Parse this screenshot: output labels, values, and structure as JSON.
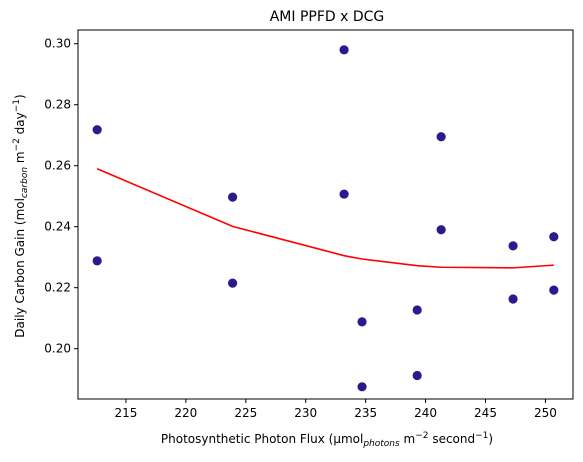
{
  "chart_data": {
    "type": "scatter",
    "title": "AMI PPFD x DCG",
    "xlabel": {
      "prefix": "Photosynthetic Photon Flux (μmol",
      "sub": "photons",
      "mid1": " m",
      "sup1": "−2",
      "mid2": " second",
      "sup2": "−1",
      "suffix": ")"
    },
    "ylabel": {
      "prefix": "Daily Carbon Gain (mol",
      "sub": "carbon",
      "mid1": " m",
      "sup1": "−2",
      "mid2": " day",
      "sup2": "−1",
      "suffix": ")"
    },
    "xlim": [
      211.0,
      252.3
    ],
    "ylim": [
      0.1835,
      0.3045
    ],
    "xticks": [
      215,
      220,
      225,
      230,
      235,
      240,
      245,
      250
    ],
    "yticks": [
      0.2,
      0.22,
      0.24,
      0.26,
      0.28,
      0.3
    ],
    "grid": false,
    "scatter_color": "#2a1a8c",
    "line_color": "#ff0000",
    "points": [
      {
        "x": 212.6,
        "y": 0.2718
      },
      {
        "x": 212.6,
        "y": 0.2288
      },
      {
        "x": 223.9,
        "y": 0.2497
      },
      {
        "x": 223.9,
        "y": 0.2215
      },
      {
        "x": 233.2,
        "y": 0.298
      },
      {
        "x": 233.2,
        "y": 0.2507
      },
      {
        "x": 234.7,
        "y": 0.2088
      },
      {
        "x": 234.7,
        "y": 0.1875
      },
      {
        "x": 239.3,
        "y": 0.2127
      },
      {
        "x": 239.3,
        "y": 0.1912
      },
      {
        "x": 241.3,
        "y": 0.2695
      },
      {
        "x": 241.3,
        "y": 0.239
      },
      {
        "x": 247.3,
        "y": 0.2337
      },
      {
        "x": 247.3,
        "y": 0.2163
      },
      {
        "x": 250.7,
        "y": 0.2367
      },
      {
        "x": 250.7,
        "y": 0.2192
      }
    ],
    "trend_line": [
      {
        "x": 212.6,
        "y": 0.259
      },
      {
        "x": 223.9,
        "y": 0.2401
      },
      {
        "x": 233.2,
        "y": 0.2305
      },
      {
        "x": 234.7,
        "y": 0.2294
      },
      {
        "x": 239.3,
        "y": 0.2272
      },
      {
        "x": 241.3,
        "y": 0.2267
      },
      {
        "x": 247.3,
        "y": 0.2265
      },
      {
        "x": 250.7,
        "y": 0.2274
      }
    ]
  }
}
